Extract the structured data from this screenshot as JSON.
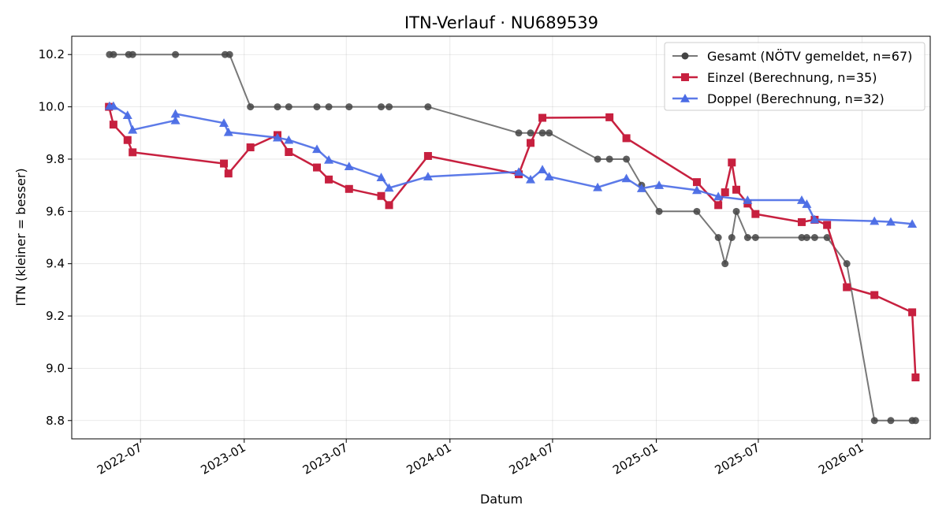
{
  "chart_data": {
    "type": "line",
    "title": "ITN-Verlauf · NU689539",
    "xlabel": "Datum",
    "ylabel": "ITN  (kleiner = besser)",
    "x_type": "date",
    "xlim": [
      "2022-03-01",
      "2026-05-02"
    ],
    "ylim": [
      8.73,
      10.27
    ],
    "x_ticks": [
      "2022-07-01",
      "2023-01-01",
      "2023-07-01",
      "2024-01-01",
      "2024-07-01",
      "2025-01-01",
      "2025-07-01",
      "2026-01-01"
    ],
    "x_tick_labels": [
      "2022-07",
      "2023-01",
      "2023-07",
      "2024-01",
      "2024-07",
      "2025-01",
      "2025-07",
      "2026-01"
    ],
    "y_ticks": [
      8.8,
      9.0,
      9.2,
      9.4,
      9.6,
      9.8,
      10.0,
      10.2
    ],
    "y_tick_labels": [
      "8.8",
      "9.0",
      "9.2",
      "9.4",
      "9.6",
      "9.8",
      "10.0",
      "10.2"
    ],
    "grid": true,
    "legend_position": "top-right",
    "series": [
      {
        "name": "Gesamt (NÖTV gemeldet, n=67)",
        "color": "#444444",
        "marker": "circle",
        "points": [
          [
            "2022-05-07",
            10.2
          ],
          [
            "2022-05-14",
            10.2
          ],
          [
            "2022-06-10",
            10.2
          ],
          [
            "2022-06-17",
            10.2
          ],
          [
            "2022-09-01",
            10.2
          ],
          [
            "2022-11-28",
            10.2
          ],
          [
            "2022-12-06",
            10.2
          ],
          [
            "2023-01-12",
            10.0
          ],
          [
            "2023-03-01",
            10.0
          ],
          [
            "2023-03-21",
            10.0
          ],
          [
            "2023-05-10",
            10.0
          ],
          [
            "2023-05-31",
            10.0
          ],
          [
            "2023-07-06",
            10.0
          ],
          [
            "2023-09-01",
            10.0
          ],
          [
            "2023-09-15",
            10.0
          ],
          [
            "2023-11-23",
            10.0
          ],
          [
            "2024-05-02",
            9.9
          ],
          [
            "2024-05-23",
            9.9
          ],
          [
            "2024-06-13",
            9.9
          ],
          [
            "2024-06-25",
            9.9
          ],
          [
            "2024-09-19",
            9.8
          ],
          [
            "2024-10-10",
            9.8
          ],
          [
            "2024-11-09",
            9.8
          ],
          [
            "2024-12-06",
            9.7
          ],
          [
            "2025-01-06",
            9.6
          ],
          [
            "2025-03-14",
            9.6
          ],
          [
            "2025-04-21",
            9.5
          ],
          [
            "2025-05-03",
            9.4
          ],
          [
            "2025-05-15",
            9.5
          ],
          [
            "2025-05-23",
            9.6
          ],
          [
            "2025-06-12",
            9.5
          ],
          [
            "2025-06-26",
            9.5
          ],
          [
            "2025-09-16",
            9.5
          ],
          [
            "2025-09-25",
            9.5
          ],
          [
            "2025-10-09",
            9.5
          ],
          [
            "2025-10-31",
            9.5
          ],
          [
            "2025-12-05",
            9.4
          ],
          [
            "2026-01-23",
            8.8
          ],
          [
            "2026-02-21",
            8.8
          ],
          [
            "2026-03-31",
            8.8
          ],
          [
            "2026-04-06",
            8.8
          ]
        ]
      },
      {
        "name": "Einzel (Berechnung, n=35)",
        "color": "#c7203f",
        "marker": "square",
        "points": [
          [
            "2022-05-06",
            10.0
          ],
          [
            "2022-05-14",
            9.932
          ],
          [
            "2022-06-08",
            9.873
          ],
          [
            "2022-06-17",
            9.826
          ],
          [
            "2022-11-26",
            9.783
          ],
          [
            "2022-12-04",
            9.745
          ],
          [
            "2023-01-12",
            9.845
          ],
          [
            "2023-03-01",
            9.892
          ],
          [
            "2023-03-21",
            9.827
          ],
          [
            "2023-05-10",
            9.768
          ],
          [
            "2023-05-31",
            9.722
          ],
          [
            "2023-07-06",
            9.686
          ],
          [
            "2023-09-01",
            9.659
          ],
          [
            "2023-09-15",
            9.624
          ],
          [
            "2023-11-23",
            9.812
          ],
          [
            "2024-05-02",
            9.742
          ],
          [
            "2024-05-23",
            9.862
          ],
          [
            "2024-06-13",
            9.958
          ],
          [
            "2024-10-10",
            9.96
          ],
          [
            "2024-11-09",
            9.88
          ],
          [
            "2025-03-14",
            9.712
          ],
          [
            "2025-04-21",
            9.624
          ],
          [
            "2025-05-03",
            9.673
          ],
          [
            "2025-05-15",
            9.787
          ],
          [
            "2025-05-23",
            9.683
          ],
          [
            "2025-06-12",
            9.63
          ],
          [
            "2025-06-26",
            9.59
          ],
          [
            "2025-09-16",
            9.559
          ],
          [
            "2025-10-09",
            9.568
          ],
          [
            "2025-10-31",
            9.548
          ],
          [
            "2025-12-05",
            9.31
          ],
          [
            "2026-01-23",
            9.28
          ],
          [
            "2026-03-31",
            9.214
          ],
          [
            "2026-04-06",
            8.965
          ]
        ]
      },
      {
        "name": "Doppel (Berechnung, n=32)",
        "color": "#4a6be5",
        "marker": "triangle",
        "points": [
          [
            "2022-05-07",
            10.003
          ],
          [
            "2022-05-14",
            10.003
          ],
          [
            "2022-06-08",
            9.968
          ],
          [
            "2022-06-17",
            9.912
          ],
          [
            "2022-09-01",
            9.948
          ],
          [
            "2022-09-01",
            9.973
          ],
          [
            "2022-11-26",
            9.938
          ],
          [
            "2022-12-04",
            9.903
          ],
          [
            "2023-03-01",
            9.882
          ],
          [
            "2023-03-21",
            9.873
          ],
          [
            "2023-05-10",
            9.838
          ],
          [
            "2023-05-31",
            9.797
          ],
          [
            "2023-07-06",
            9.772
          ],
          [
            "2023-09-01",
            9.73
          ],
          [
            "2023-09-15",
            9.69
          ],
          [
            "2023-11-23",
            9.733
          ],
          [
            "2024-05-02",
            9.751
          ],
          [
            "2024-05-23",
            9.722
          ],
          [
            "2024-06-13",
            9.76
          ],
          [
            "2024-06-25",
            9.733
          ],
          [
            "2024-09-19",
            9.692
          ],
          [
            "2024-11-09",
            9.726
          ],
          [
            "2024-12-06",
            9.688
          ],
          [
            "2025-01-06",
            9.7
          ],
          [
            "2025-03-14",
            9.681
          ],
          [
            "2025-04-21",
            9.657
          ],
          [
            "2025-06-12",
            9.643
          ],
          [
            "2025-09-16",
            9.643
          ],
          [
            "2025-09-25",
            9.628
          ],
          [
            "2025-10-09",
            9.569
          ],
          [
            "2026-01-23",
            9.563
          ],
          [
            "2026-02-21",
            9.56
          ],
          [
            "2026-03-31",
            9.552
          ]
        ]
      }
    ]
  }
}
